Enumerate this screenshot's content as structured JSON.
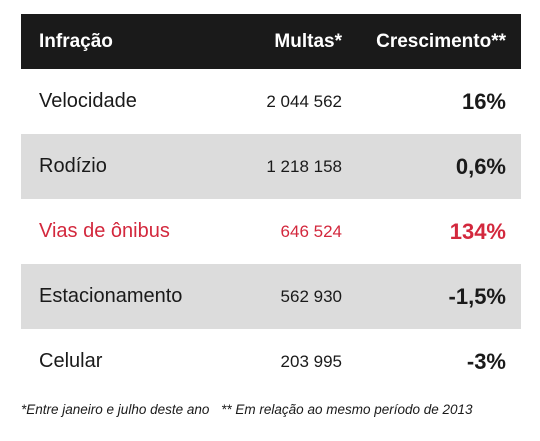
{
  "chart_data": {
    "type": "table",
    "columns": [
      "Infração",
      "Multas*",
      "Crescimento**"
    ],
    "rows": [
      {
        "infracao": "Velocidade",
        "multas": "2 044 562",
        "crescimento": "16%"
      },
      {
        "infracao": "Rodízio",
        "multas": "1 218 158",
        "crescimento": "0,6%"
      },
      {
        "infracao": "Vias de ônibus",
        "multas": "646 524",
        "crescimento": "134%"
      },
      {
        "infracao": "Estacionamento",
        "multas": "562 930",
        "crescimento": "-1,5%"
      },
      {
        "infracao": "Celular",
        "multas": "203 995",
        "crescimento": "-3%"
      }
    ],
    "multas_values": [
      2044562,
      1218158,
      646524,
      562930,
      203995
    ],
    "crescimento_values": [
      16,
      0.6,
      134,
      -1.5,
      -3
    ],
    "highlight_color": "#d3283d",
    "header_bg": "#1a1a1a",
    "stripe_bg": "#dcdcdc"
  },
  "footnotes": [
    "*Entre janeiro e julho deste ano",
    "** Em relação ao mesmo período de 2013"
  ]
}
